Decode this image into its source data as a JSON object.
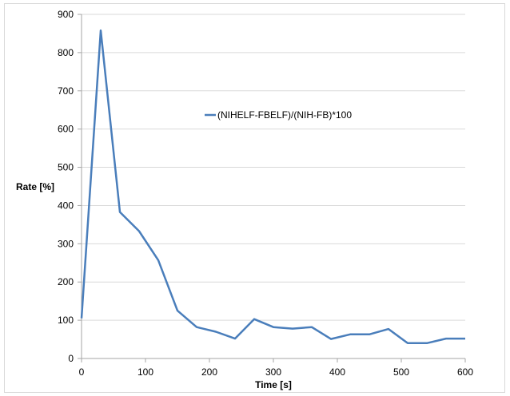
{
  "chart_data": {
    "type": "line",
    "title": "",
    "xlabel": "Time [s]",
    "ylabel": "Rate [%]",
    "xlim": [
      0,
      600
    ],
    "ylim": [
      0,
      900
    ],
    "x_ticks": [
      "0",
      "100",
      "200",
      "300",
      "400",
      "500",
      "600"
    ],
    "y_ticks": [
      "0",
      "100",
      "200",
      "300",
      "400",
      "500",
      "600",
      "700",
      "800",
      "900"
    ],
    "grid": "horizontal",
    "legend_position": "center-right inside plot",
    "series": [
      {
        "name": "(NIHELF-FBELF)/(NIH-FB)*100",
        "color": "#4a7ebb",
        "x": [
          0,
          30,
          60,
          90,
          120,
          150,
          180,
          210,
          240,
          270,
          300,
          330,
          360,
          390,
          420,
          450,
          480,
          510,
          540,
          570,
          600
        ],
        "y": [
          105,
          858,
          383,
          333,
          257,
          125,
          82,
          70,
          52,
          103,
          82,
          78,
          82,
          51,
          63,
          63,
          77,
          40,
          40,
          52,
          52
        ]
      }
    ]
  }
}
